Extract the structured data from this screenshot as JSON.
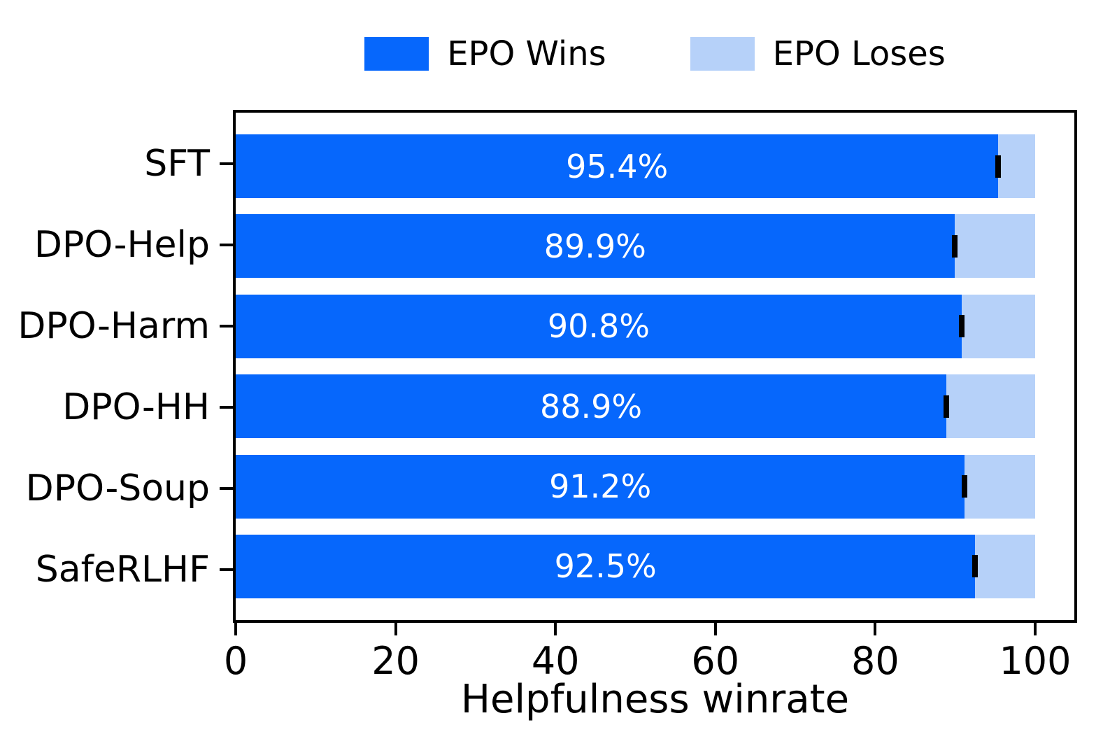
{
  "colors": {
    "win": "#0667fc",
    "lose": "#b6d1f9",
    "error_bar": "#000000",
    "frame": "#000000",
    "bar_label_text": "#ffffff"
  },
  "legend": {
    "items": [
      {
        "label": "EPO Wins",
        "color": "#0667fc"
      },
      {
        "label": "EPO Loses",
        "color": "#b6d1f9"
      }
    ]
  },
  "chart_data": {
    "type": "bar",
    "orientation": "horizontal",
    "stacked": true,
    "title": "",
    "xlabel": "Helpfulness winrate",
    "ylabel": "",
    "categories": [
      "SFT",
      "DPO-Help",
      "DPO-Harm",
      "DPO-HH",
      "DPO-Soup",
      "SafeRLHF"
    ],
    "series": [
      {
        "name": "EPO Wins",
        "color": "#0667fc",
        "values": [
          95.4,
          89.9,
          90.8,
          88.9,
          91.2,
          92.5
        ]
      },
      {
        "name": "EPO Loses",
        "color": "#b6d1f9",
        "values": [
          4.6,
          10.1,
          9.2,
          11.1,
          8.8,
          7.5
        ]
      }
    ],
    "bar_labels": [
      "95.4%",
      "89.9%",
      "90.8%",
      "88.9%",
      "91.2%",
      "92.5%"
    ],
    "error_bars_shown": true,
    "x_ticks": [
      0,
      20,
      40,
      60,
      80,
      100
    ],
    "x_tick_labels": [
      "0",
      "20",
      "40",
      "60",
      "80",
      "100"
    ],
    "xlim": [
      0,
      104.9
    ],
    "grid": false,
    "legend_position": "top-center"
  }
}
